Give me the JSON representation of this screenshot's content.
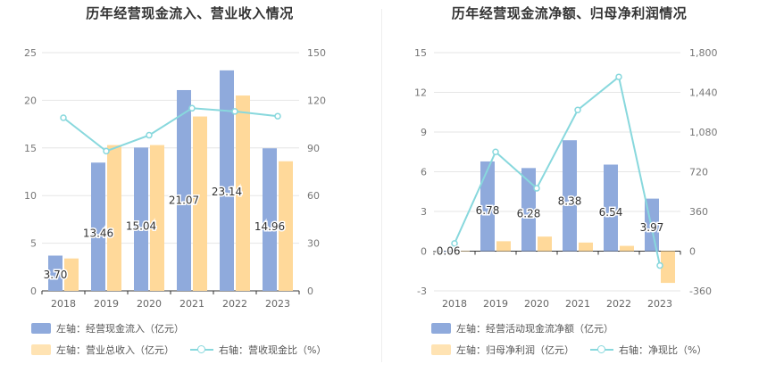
{
  "charts": [
    {
      "title": "历年经营现金流入、营业收入情况",
      "legend": {
        "s1": "左轴：经营现金流入（亿元）",
        "s2": "左轴：营业总收入（亿元）",
        "s3": "右轴：营收现金比（%）"
      }
    },
    {
      "title": "历年经营现金流净额、归母净利润情况",
      "legend": {
        "s1": "左轴：经营活动现金流净额（亿元）",
        "s2": "左轴：归母净利润（亿元）",
        "s3": "右轴：净现比（%）"
      }
    }
  ],
  "chart_data": [
    {
      "type": "bar",
      "title": "历年经营现金流入、营业收入情况",
      "categories": [
        "2018",
        "2019",
        "2020",
        "2021",
        "2022",
        "2023"
      ],
      "series": [
        {
          "name": "左轴：经营现金流入（亿元）",
          "axis": "left",
          "type": "bar",
          "color": "#8faadc",
          "values": [
            3.7,
            13.46,
            15.04,
            21.07,
            23.14,
            14.96
          ],
          "labels": [
            "3.70",
            "13.46",
            "15.04",
            "21.07",
            "23.14",
            "14.96"
          ]
        },
        {
          "name": "左轴：营业总收入（亿元）",
          "axis": "left",
          "type": "bar",
          "color": "#ffd99a",
          "values": [
            3.4,
            15.3,
            15.3,
            18.3,
            20.5,
            13.6
          ]
        },
        {
          "name": "右轴：营收现金比（%）",
          "axis": "right",
          "type": "line",
          "color": "#88d8dd",
          "values": [
            109,
            88,
            98,
            115,
            113,
            110
          ]
        }
      ],
      "left_axis": {
        "ylim": [
          0,
          25
        ],
        "ticks": [
          "0",
          "5",
          "10",
          "15",
          "20",
          "25"
        ]
      },
      "right_axis": {
        "ylim": [
          0,
          150
        ],
        "ticks": [
          "0",
          "30",
          "60",
          "90",
          "120",
          "150"
        ]
      },
      "grid": true,
      "legend_position": "bottom"
    },
    {
      "type": "bar",
      "title": "历年经营现金流净额、归母净利润情况",
      "categories": [
        "2018",
        "2019",
        "2020",
        "2021",
        "2022",
        "2023"
      ],
      "series": [
        {
          "name": "左轴：经营活动现金流净额（亿元）",
          "axis": "left",
          "type": "bar",
          "color": "#8faadc",
          "values": [
            -0.06,
            6.78,
            6.28,
            8.38,
            6.54,
            3.97
          ],
          "labels": [
            "-0.06",
            "6.78",
            "6.28",
            "8.38",
            "6.54",
            "3.97"
          ]
        },
        {
          "name": "左轴：归母净利润（亿元）",
          "axis": "left",
          "type": "bar",
          "color": "#ffd99a",
          "values": [
            0.0,
            0.75,
            1.1,
            0.65,
            0.4,
            -2.4
          ]
        },
        {
          "name": "右轴：净现比（%）",
          "axis": "right",
          "type": "line",
          "color": "#88d8dd",
          "values": [
            70,
            900,
            570,
            1280,
            1580,
            -130
          ]
        }
      ],
      "left_axis": {
        "ylim": [
          -3,
          15
        ],
        "ticks": [
          "-3",
          "0",
          "3",
          "6",
          "9",
          "12",
          "15"
        ]
      },
      "right_axis": {
        "ylim": [
          -360,
          1800
        ],
        "ticks": [
          "-360",
          "0",
          "360",
          "720",
          "1,080",
          "1,440",
          "1,800"
        ]
      },
      "grid": true,
      "legend_position": "bottom"
    }
  ]
}
